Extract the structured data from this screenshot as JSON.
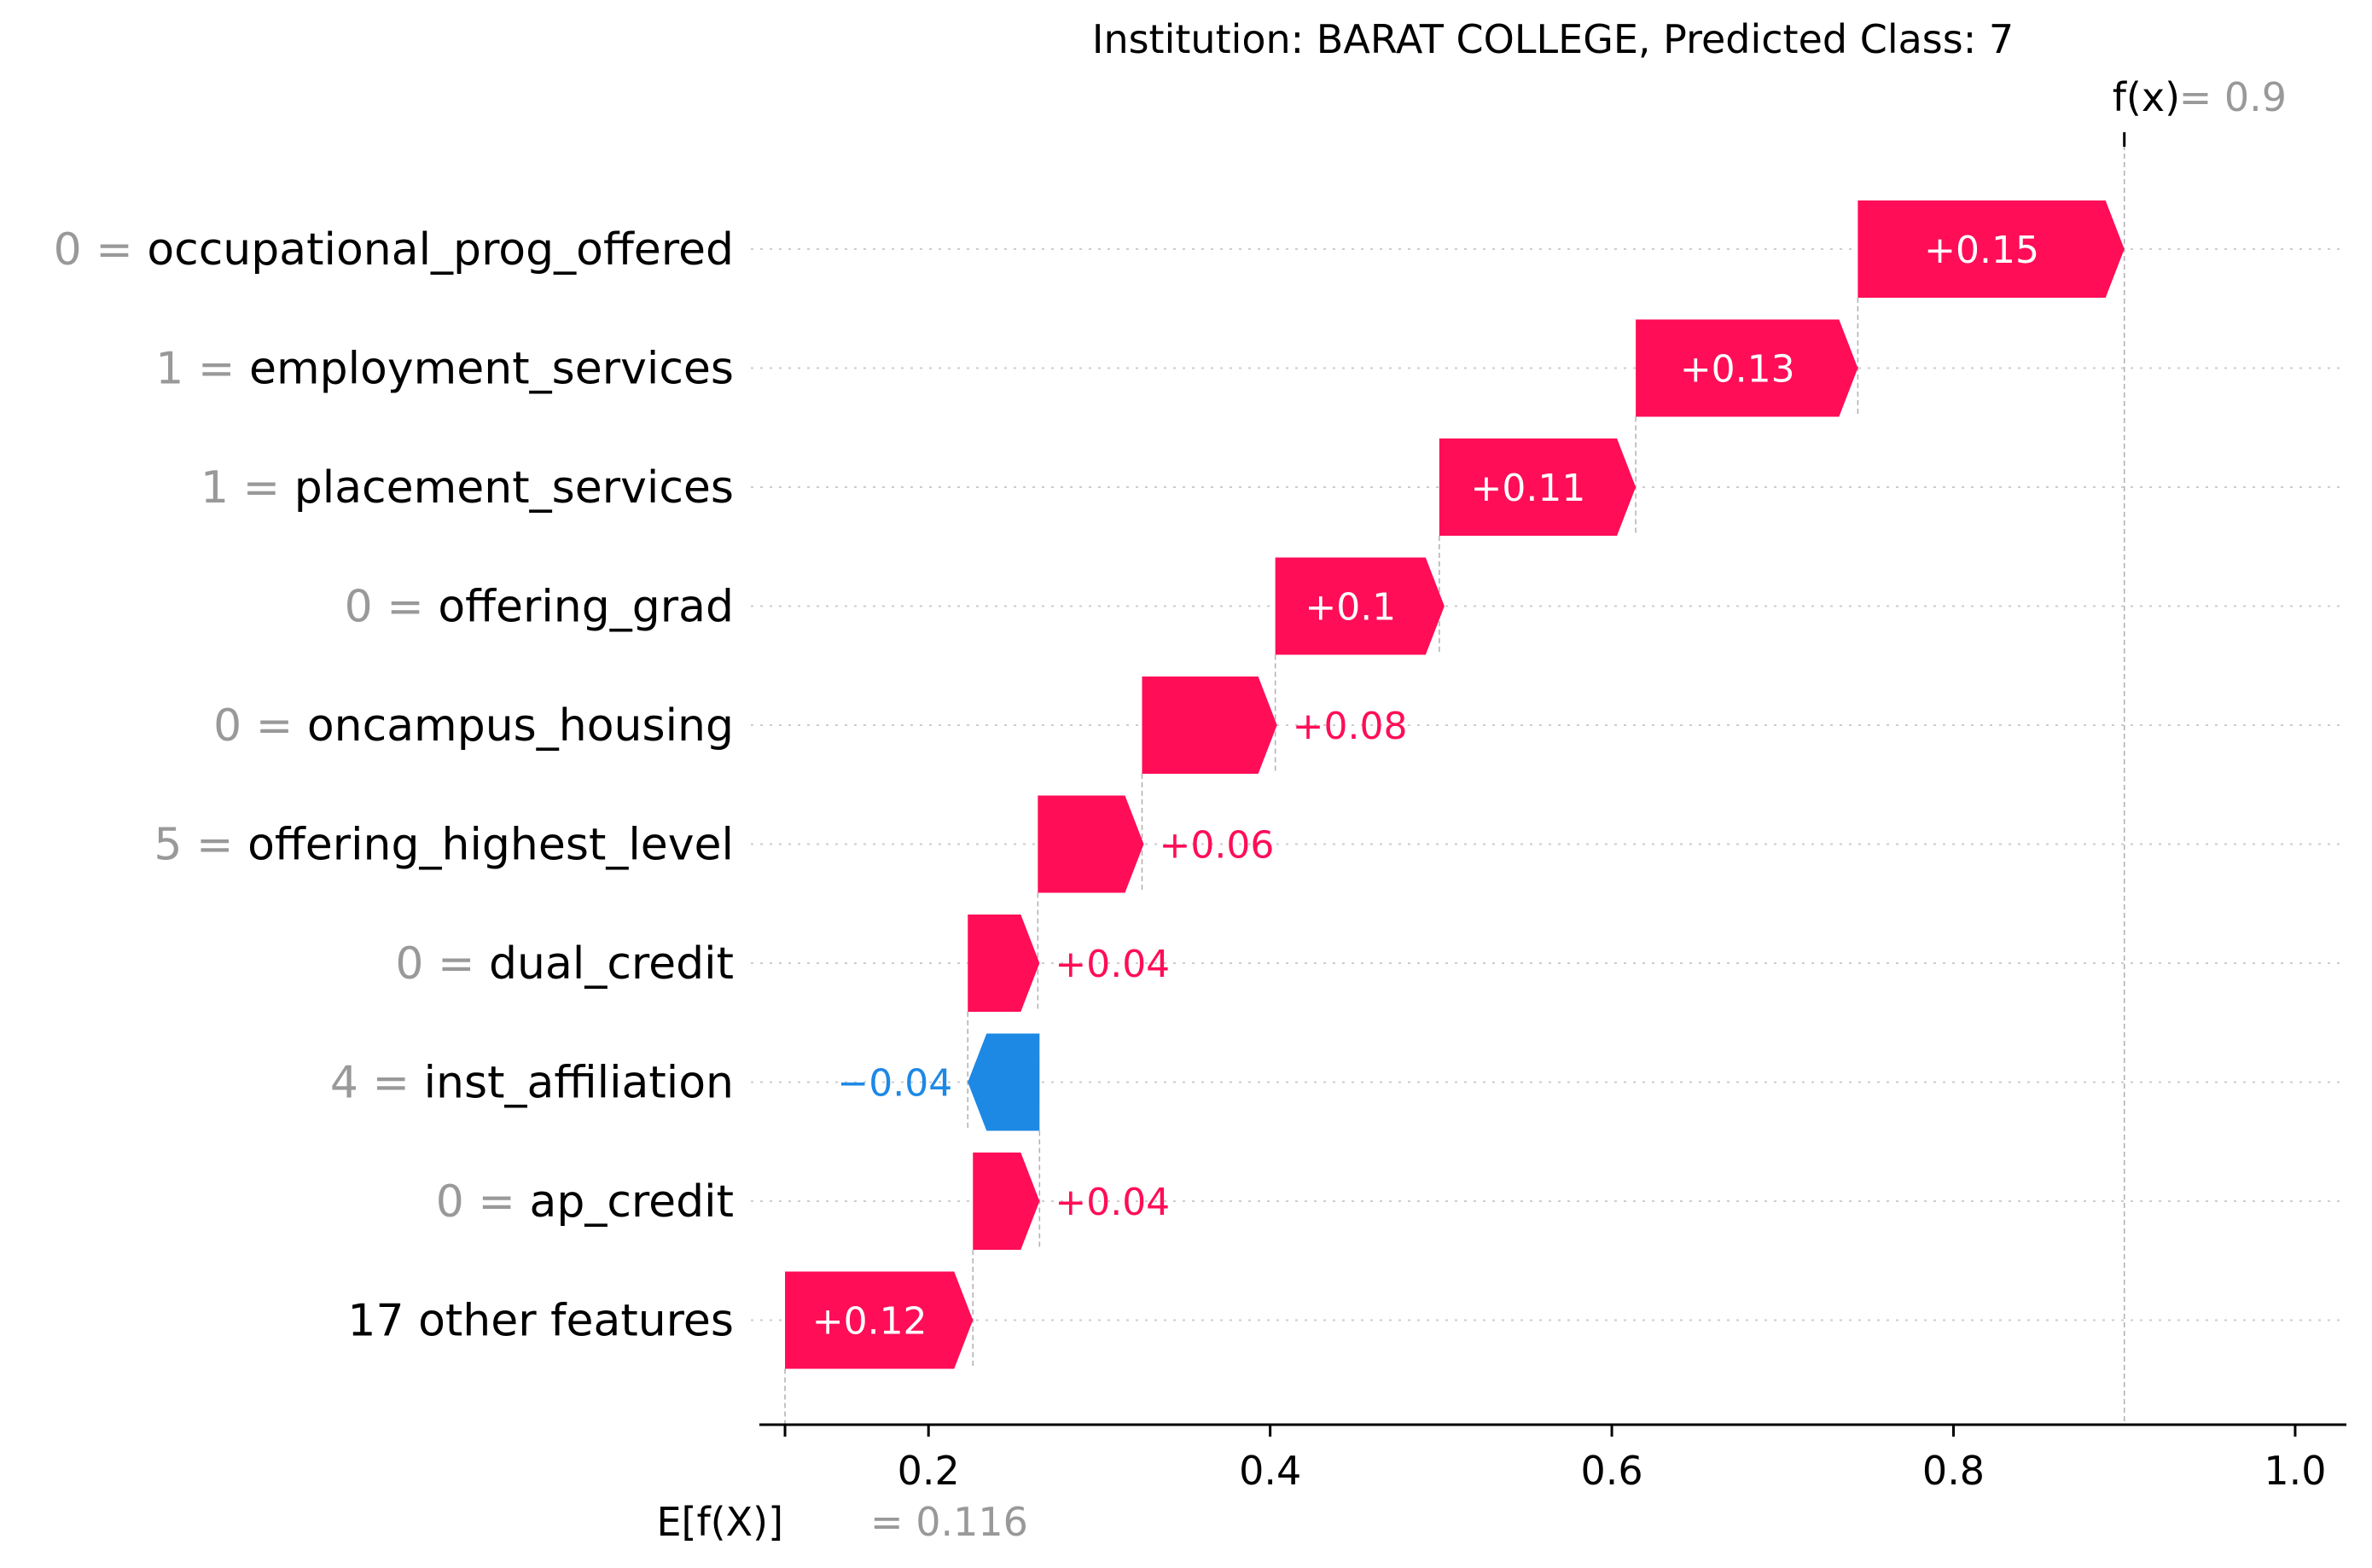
{
  "chart_data": {
    "type": "waterfall",
    "title": "Institution: BARAT COLLEGE, Predicted Class: 7",
    "base_value": 0.116,
    "base_value_label": "0.116",
    "fx_value": 0.9,
    "fx_value_label": "0.9",
    "fx_label": "f(x)",
    "base_label": "E[f(X)]",
    "xlim": [
      0.101,
      1.03
    ],
    "x_ticks": [
      0.2,
      0.4,
      0.6,
      0.8,
      1.0
    ],
    "x_tick_labels": [
      "0.2",
      "0.4",
      "0.6",
      "0.8",
      "1.0"
    ],
    "grid": "dotted horizontal lines at each feature row",
    "features": [
      {
        "value": "0",
        "name": "occupational_prog_offered",
        "start": 0.744,
        "end": 0.9,
        "contribution": 0.15,
        "label": "+0.15"
      },
      {
        "value": "1",
        "name": "employment_services",
        "start": 0.614,
        "end": 0.744,
        "contribution": 0.13,
        "label": "+0.13"
      },
      {
        "value": "1",
        "name": "placement_services",
        "start": 0.499,
        "end": 0.614,
        "contribution": 0.11,
        "label": "+0.11"
      },
      {
        "value": "0",
        "name": "offering_grad",
        "start": 0.403,
        "end": 0.502,
        "contribution": 0.1,
        "label": "+0.1"
      },
      {
        "value": "0",
        "name": "oncampus_housing",
        "start": 0.325,
        "end": 0.404,
        "contribution": 0.08,
        "label": "+0.08"
      },
      {
        "value": "5",
        "name": "offering_highest_level",
        "start": 0.264,
        "end": 0.326,
        "contribution": 0.06,
        "label": "+0.06"
      },
      {
        "value": "0",
        "name": "dual_credit",
        "start": 0.223,
        "end": 0.265,
        "contribution": 0.04,
        "label": "+0.04"
      },
      {
        "value": "4",
        "name": "inst_affiliation",
        "start": 0.265,
        "end": 0.223,
        "contribution": -0.04,
        "label": "−0.04"
      },
      {
        "value": "0",
        "name": "ap_credit",
        "start": 0.226,
        "end": 0.265,
        "contribution": 0.04,
        "label": "+0.04"
      },
      {
        "value": "",
        "name": "17 other features",
        "start": 0.116,
        "end": 0.226,
        "contribution": 0.12,
        "label": "+0.12"
      }
    ],
    "colors": {
      "positive": "#ff0d57",
      "negative": "#1e88e5",
      "feature_value": "#999999",
      "feature_name": "#000000",
      "axis": "#000000",
      "grid": "#cccccc"
    }
  }
}
